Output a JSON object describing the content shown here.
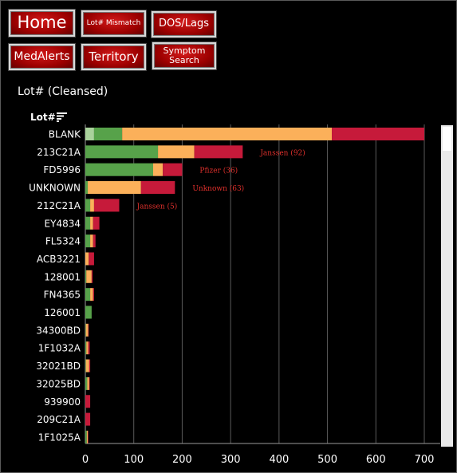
{
  "nav": {
    "home": "Home",
    "lot_mismatch": "Lot# Mismatch",
    "dos_lags": "DOS/Lags",
    "med_alerts": "MedAlerts",
    "territory": "Territory",
    "symptom_search_line1": "Symptom",
    "symptom_search_line2": "Search"
  },
  "header": {
    "title": "Lot# (Cleansed)",
    "axis_label": "Lot#",
    "sort_icon": "sort-icon"
  },
  "colors": {
    "light_green": "#a9d29b",
    "green": "#57a24a",
    "orange": "#fbb05a",
    "red": "#c61a3a",
    "annotation": "#e0302c"
  },
  "chart_data": {
    "type": "bar",
    "orientation": "horizontal",
    "stacked": true,
    "xlim": [
      0,
      700
    ],
    "xticks": [
      0,
      100,
      200,
      300,
      400,
      500,
      600,
      700
    ],
    "grid": "vertical",
    "categories": [
      "BLANK",
      "213C21A",
      "FD5996",
      "UNKNOWN",
      "212C21A",
      "EY4834",
      "FL5324",
      "ACB3221",
      "128001",
      "FN4365",
      "126001",
      "34300BD",
      "1F1032A",
      "32021BD",
      "32025BD",
      "939900",
      "209C21A",
      "1F1025A"
    ],
    "series": [
      {
        "color_key": "light_green",
        "values": [
          18,
          0,
          0,
          0,
          0,
          0,
          0,
          0,
          0,
          0,
          0,
          0,
          0,
          0,
          0,
          0,
          0,
          0
        ]
      },
      {
        "color_key": "green",
        "values": [
          58,
          150,
          140,
          5,
          10,
          10,
          10,
          0,
          2,
          10,
          13,
          1,
          2,
          1,
          4,
          0,
          0,
          3
        ]
      },
      {
        "color_key": "orange",
        "values": [
          433,
          75,
          20,
          110,
          8,
          6,
          6,
          7,
          11,
          6,
          0,
          5,
          4,
          7,
          4,
          0,
          0,
          2
        ]
      },
      {
        "color_key": "red",
        "values": [
          191,
          100,
          40,
          70,
          52,
          13,
          5,
          11,
          2,
          2,
          0,
          1,
          3,
          2,
          1,
          10,
          10,
          1
        ]
      }
    ],
    "annotations": [
      {
        "category": "213C21A",
        "text": "Janssen (92)"
      },
      {
        "category": "FD5996",
        "text": "Pfizer (36)"
      },
      {
        "category": "UNKNOWN",
        "text": "Unknown (63)"
      },
      {
        "category": "212C21A",
        "text": "Janssen (5)"
      }
    ]
  }
}
